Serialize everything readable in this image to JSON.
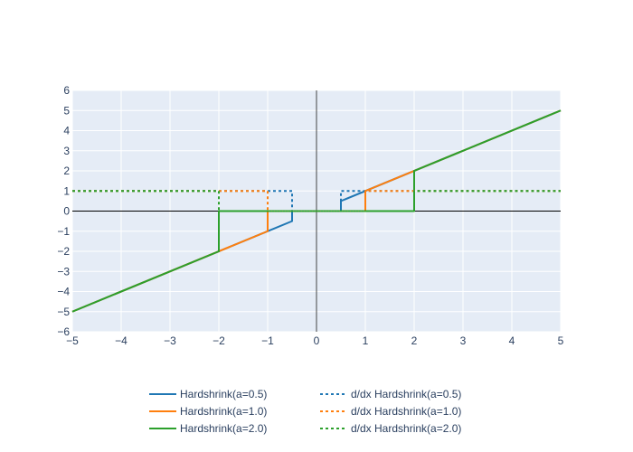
{
  "chart_data": {
    "type": "line",
    "title": "",
    "xlabel": "",
    "ylabel": "",
    "xlim": [
      -5,
      5
    ],
    "ylim": [
      -6,
      6
    ],
    "xticks": [
      -5,
      -4,
      -3,
      -2,
      -1,
      0,
      1,
      2,
      3,
      4,
      5
    ],
    "yticks": [
      -6,
      -5,
      -4,
      -3,
      -2,
      -1,
      0,
      1,
      2,
      3,
      4,
      5,
      6
    ],
    "xtick_labels": [
      "−5",
      "−4",
      "−3",
      "−2",
      "−1",
      "0",
      "1",
      "2",
      "3",
      "4",
      "5"
    ],
    "ytick_labels": [
      "−6",
      "−5",
      "−4",
      "−3",
      "−2",
      "−1",
      "0",
      "1",
      "2",
      "3",
      "4",
      "5",
      "6"
    ],
    "grid": true,
    "legend_position": "bottom-center",
    "background": "#e5ecf6",
    "series": [
      {
        "name": "Hardshrink(a=0.5)",
        "color": "#1f77b4",
        "dash": "solid",
        "points": [
          [
            -5,
            -5
          ],
          [
            -0.5,
            -0.5
          ],
          [
            -0.5,
            0
          ],
          [
            0.5,
            0
          ],
          [
            0.5,
            0.5
          ],
          [
            5,
            5
          ]
        ]
      },
      {
        "name": "Hardshrink(a=1.0)",
        "color": "#ff7f0e",
        "dash": "solid",
        "points": [
          [
            -5,
            -5
          ],
          [
            -1,
            -1
          ],
          [
            -1,
            0
          ],
          [
            1,
            0
          ],
          [
            1,
            1
          ],
          [
            5,
            5
          ]
        ]
      },
      {
        "name": "Hardshrink(a=2.0)",
        "color": "#2ca02c",
        "dash": "solid",
        "points": [
          [
            -5,
            -5
          ],
          [
            -2,
            -2
          ],
          [
            -2,
            0
          ],
          [
            2,
            0
          ],
          [
            2,
            2
          ],
          [
            5,
            5
          ]
        ]
      },
      {
        "name": "d/dx Hardshrink(a=0.5)",
        "color": "#1f77b4",
        "dash": "dot",
        "points": [
          [
            -5,
            1
          ],
          [
            -0.5,
            1
          ],
          [
            -0.5,
            0
          ],
          [
            0.5,
            0
          ],
          [
            0.5,
            1
          ],
          [
            5,
            1
          ]
        ]
      },
      {
        "name": "d/dx Hardshrink(a=1.0)",
        "color": "#ff7f0e",
        "dash": "dot",
        "points": [
          [
            -5,
            1
          ],
          [
            -1,
            1
          ],
          [
            -1,
            0
          ],
          [
            1,
            0
          ],
          [
            1,
            1
          ],
          [
            5,
            1
          ]
        ]
      },
      {
        "name": "d/dx Hardshrink(a=2.0)",
        "color": "#2ca02c",
        "dash": "dot",
        "points": [
          [
            -5,
            1
          ],
          [
            -2,
            1
          ],
          [
            -2,
            0
          ],
          [
            2,
            0
          ],
          [
            2,
            1
          ],
          [
            5,
            1
          ]
        ]
      }
    ]
  }
}
